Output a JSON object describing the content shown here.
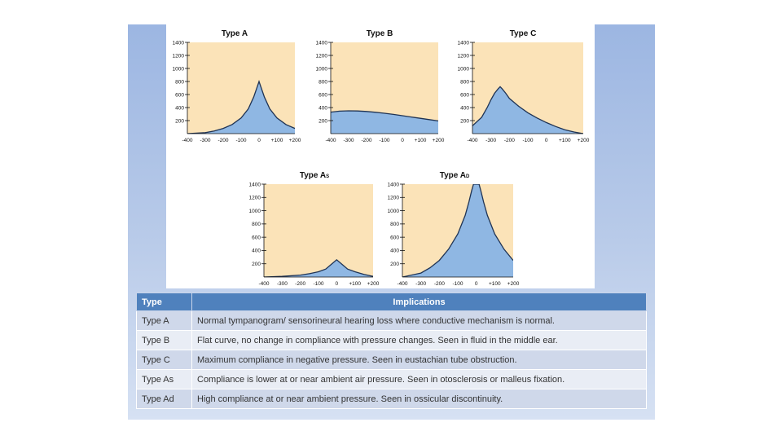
{
  "chart_data": [
    {
      "type": "area",
      "title": "Type A",
      "title_sub": "",
      "x_ticks": [
        "-400",
        "-300",
        "-200",
        "-100",
        "0",
        "+100",
        "+200"
      ],
      "y_ticks": [
        "200",
        "400",
        "600",
        "800",
        "1000",
        "1200",
        "1400"
      ],
      "xlim": [
        -400,
        200
      ],
      "ylim": [
        0,
        1400
      ],
      "x": [
        -400,
        -300,
        -250,
        -200,
        -150,
        -100,
        -60,
        -30,
        -10,
        0,
        10,
        30,
        60,
        100,
        150,
        200
      ],
      "y": [
        0,
        15,
        40,
        80,
        140,
        240,
        380,
        560,
        720,
        800,
        720,
        560,
        380,
        240,
        140,
        80
      ]
    },
    {
      "type": "area",
      "title": "Type B",
      "title_sub": "",
      "x_ticks": [
        "-400",
        "-300",
        "-200",
        "-100",
        "0",
        "+100",
        "+200"
      ],
      "y_ticks": [
        "200",
        "400",
        "600",
        "800",
        "1000",
        "1200",
        "1400"
      ],
      "xlim": [
        -400,
        200
      ],
      "ylim": [
        0,
        1400
      ],
      "x": [
        -400,
        -350,
        -300,
        -250,
        -200,
        -150,
        -100,
        -50,
        0,
        50,
        100,
        150,
        200
      ],
      "y": [
        330,
        345,
        350,
        348,
        340,
        328,
        312,
        295,
        275,
        255,
        235,
        215,
        195
      ]
    },
    {
      "type": "area",
      "title": "Type C",
      "title_sub": "",
      "x_ticks": [
        "-400",
        "-300",
        "-200",
        "-100",
        "0",
        "+100",
        "+200"
      ],
      "y_ticks": [
        "200",
        "400",
        "600",
        "800",
        "1000",
        "1200",
        "1400"
      ],
      "xlim": [
        -400,
        200
      ],
      "ylim": [
        0,
        1400
      ],
      "x": [
        -400,
        -350,
        -320,
        -300,
        -280,
        -260,
        -250,
        -240,
        -220,
        -200,
        -150,
        -100,
        -50,
        0,
        50,
        100,
        150,
        200
      ],
      "y": [
        120,
        250,
        400,
        520,
        620,
        690,
        720,
        690,
        620,
        540,
        420,
        320,
        240,
        170,
        110,
        60,
        25,
        0
      ]
    },
    {
      "type": "area",
      "title": "Type A",
      "title_sub": "S",
      "x_ticks": [
        "-400",
        "-300",
        "-200",
        "-100",
        "0",
        "+100",
        "+200"
      ],
      "y_ticks": [
        "200",
        "400",
        "600",
        "800",
        "1000",
        "1200",
        "1400"
      ],
      "xlim": [
        -400,
        200
      ],
      "ylim": [
        0,
        1400
      ],
      "x": [
        -400,
        -300,
        -200,
        -150,
        -100,
        -60,
        -30,
        0,
        30,
        60,
        100,
        150,
        200
      ],
      "y": [
        0,
        10,
        30,
        50,
        80,
        120,
        190,
        260,
        190,
        120,
        80,
        40,
        10
      ]
    },
    {
      "type": "area",
      "title": "Type A",
      "title_sub": "D",
      "x_ticks": [
        "-400",
        "-300",
        "-200",
        "-100",
        "0",
        "+100",
        "+200"
      ],
      "y_ticks": [
        "200",
        "400",
        "600",
        "800",
        "1000",
        "1200",
        "1400"
      ],
      "xlim": [
        -400,
        200
      ],
      "ylim": [
        0,
        1400
      ],
      "x": [
        -400,
        -300,
        -250,
        -200,
        -150,
        -100,
        -60,
        -40,
        -25,
        -15,
        -10,
        10,
        15,
        25,
        40,
        60,
        100,
        150,
        200
      ],
      "y": [
        0,
        60,
        140,
        250,
        420,
        650,
        930,
        1130,
        1300,
        1400,
        1400,
        1400,
        1400,
        1300,
        1130,
        930,
        650,
        420,
        250
      ]
    }
  ],
  "table": {
    "headers": [
      "Type",
      "Implications"
    ],
    "rows": [
      [
        "Type A",
        "Normal tympanogram/ sensorineural hearing loss where conductive mechanism is normal."
      ],
      [
        "Type B",
        "Flat curve, no change in compliance with pressure changes. Seen in fluid in the middle ear."
      ],
      [
        "Type C",
        "Maximum compliance in negative pressure. Seen in eustachian tube obstruction."
      ],
      [
        "Type As",
        "Compliance is lower at or near ambient air pressure.  Seen in otosclerosis or malleus fixation."
      ],
      [
        "Type Ad",
        "High compliance at or near ambient pressure.  Seen in ossicular discontinuity."
      ]
    ]
  },
  "colors": {
    "plot_bg": "#fbe3b8",
    "curve_fill": "#8fb7e3",
    "curve_line": "#1f3354",
    "header_bg": "#4f81bd"
  }
}
